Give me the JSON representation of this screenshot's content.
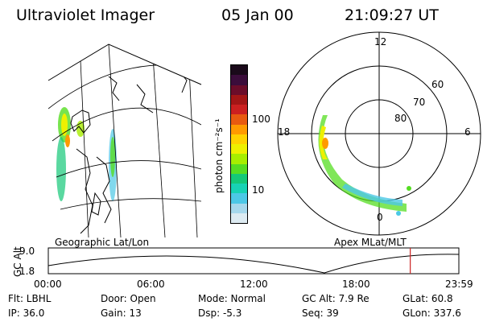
{
  "header": {
    "instrument": "Ultraviolet Imager",
    "date": "05 Jan 00",
    "time": "21:09:27 UT"
  },
  "geo_panel": {
    "label": "Geographic Lat/Lon"
  },
  "colorbar": {
    "units": "photon cm⁻²s⁻¹",
    "tick_labels": [
      "100",
      "10"
    ],
    "colors": [
      "#1a0a1a",
      "#3b0d3b",
      "#6b0d2a",
      "#a31616",
      "#cc2020",
      "#e85a10",
      "#ff9a00",
      "#ffd200",
      "#eef000",
      "#a7ee00",
      "#55dd22",
      "#14c878",
      "#18d2b4",
      "#4cc8e6",
      "#a6d8ec",
      "#ddebf2"
    ]
  },
  "polar_panel": {
    "label": "Apex MLat/MLT",
    "mlt_labels": {
      "top": "12",
      "left": "18",
      "right": "6",
      "bottom": "0"
    },
    "lat_labels": [
      "60",
      "70",
      "80"
    ]
  },
  "altitude_strip": {
    "ylabel": "GC Alt",
    "y_ticks": [
      "9.0",
      "1.8"
    ],
    "x_ticks": [
      "00:00",
      "06:00",
      "12:00",
      "18:00",
      "23:59"
    ],
    "current_time_hours": 21.16,
    "marker_color": "#cc2222"
  },
  "info": {
    "filter": "Flt: LBHL",
    "ip": "IP: 36.0",
    "door": "Door: Open",
    "gain": "Gain: 13",
    "mode": "Mode: Normal",
    "dsp": "Dsp:   -5.3",
    "gc_alt": "GC Alt: 7.9 Re",
    "seq": "Seq: 39",
    "glat": "GLat: 60.8",
    "glon": "GLon: 337.6"
  }
}
